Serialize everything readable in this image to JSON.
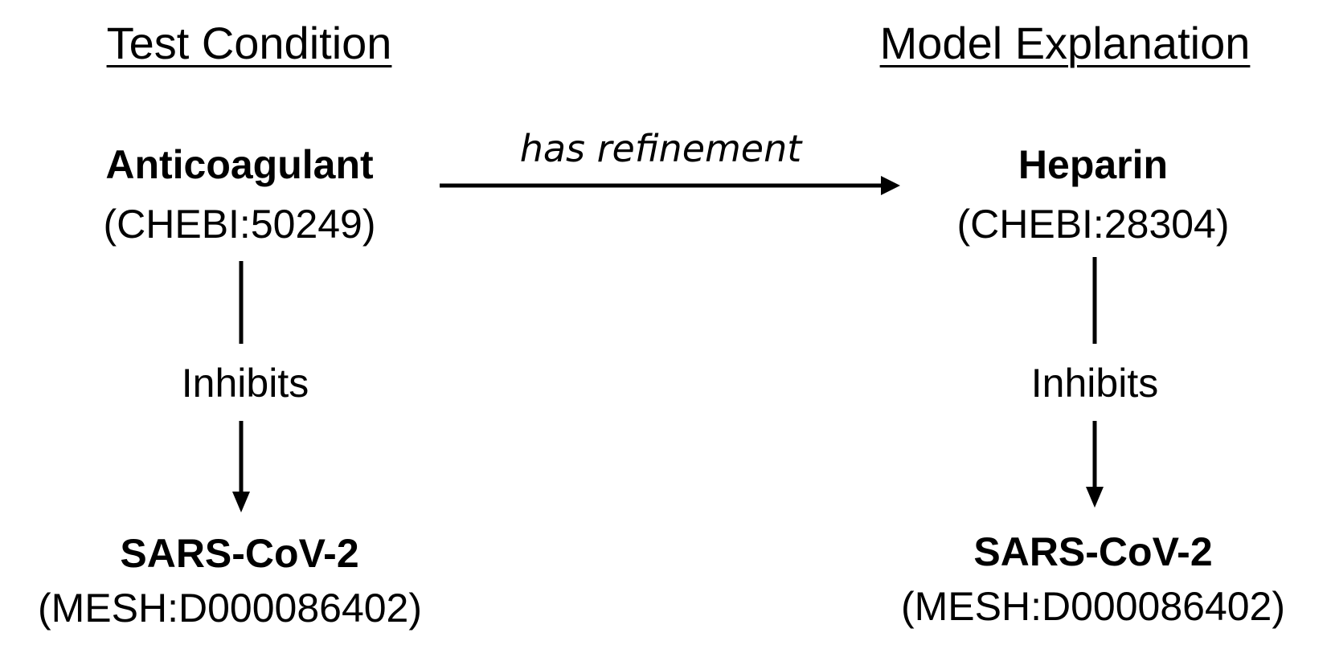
{
  "left": {
    "heading": "Test Condition",
    "subject": {
      "name": "Anticoagulant",
      "id": "(CHEBI:50249)"
    },
    "relation": "Inhibits",
    "object": {
      "name": "SARS-CoV-2",
      "id": "(MESH:D000086402)"
    }
  },
  "right": {
    "heading": "Model Explanation",
    "subject": {
      "name": "Heparin",
      "id": "(CHEBI:28304)"
    },
    "relation": "Inhibits",
    "object": {
      "name": "SARS-CoV-2",
      "id": "(MESH:D000086402)"
    }
  },
  "link": {
    "label": "has refinement"
  },
  "colors": {
    "ink": "#000000",
    "background": "#ffffff"
  }
}
